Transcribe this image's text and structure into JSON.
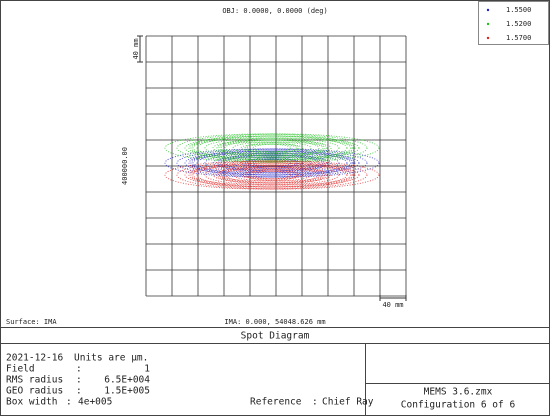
{
  "header": {
    "title": "OBJ: 0.0000, 0.0000 (deg)"
  },
  "legend": [
    {
      "label": "1.5500",
      "color": "#2020c8"
    },
    {
      "label": "1.5200",
      "color": "#20c020"
    },
    {
      "label": "1.5700",
      "color": "#e02020"
    }
  ],
  "plot": {
    "scale_top": "40 mm",
    "y_label": "400000.00",
    "scale_bottom": "40 mm",
    "surface": "Surface: IMA",
    "ima": "IMA: 0.000, 54048.626 mm"
  },
  "panel": {
    "title": "Spot Diagram",
    "date": "2021-12-16",
    "units": "Units are µm.",
    "rows": [
      [
        "Field",
        ":",
        "1"
      ],
      [
        "RMS radius",
        ":",
        "6.5E+004"
      ],
      [
        "GEO radius",
        ":",
        "1.5E+005"
      ],
      [
        "Box width",
        ":",
        "4e+005"
      ]
    ],
    "reference": [
      "Reference",
      ":",
      "Chief Ray"
    ],
    "file": "MEMS 3.6.zmx",
    "config": "Configuration 6 of 6"
  }
}
